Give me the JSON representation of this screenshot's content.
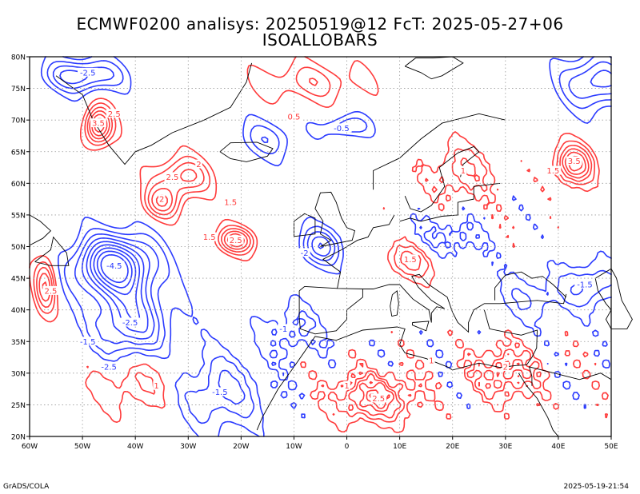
{
  "title_line1": "ECMWF0200 analisys: 20250519@12 FcT: 2025-05-27+06",
  "title_line2": "ISOALLOBARS",
  "footer_left": "GrADS/COLA",
  "footer_right": "2025-05-19-21:54",
  "map": {
    "lon_range": [
      -60,
      50
    ],
    "lat_range": [
      20,
      80
    ],
    "lon_ticks": [
      "60W",
      "50W",
      "40W",
      "30W",
      "20W",
      "10W",
      "0",
      "10E",
      "20E",
      "30E",
      "40E",
      "50E"
    ],
    "lat_ticks": [
      "20N",
      "25N",
      "30N",
      "35N",
      "40N",
      "45N",
      "50N",
      "55N",
      "60N",
      "65N",
      "70N",
      "75N",
      "80N"
    ],
    "grid": true,
    "colors": {
      "positive": "#ff3b3b",
      "negative": "#2b3bff",
      "coast": "#000000",
      "grid": "#9a9a9a"
    },
    "contour_labels_positive": [
      "0.5",
      "1",
      "1.5",
      "2",
      "2.5",
      "3",
      "3.5"
    ],
    "contour_labels_negative": [
      "-0.5",
      "-1",
      "-1.5",
      "-2",
      "-2.5",
      "-3",
      "-3.5",
      "-4",
      "-4.5"
    ]
  }
}
